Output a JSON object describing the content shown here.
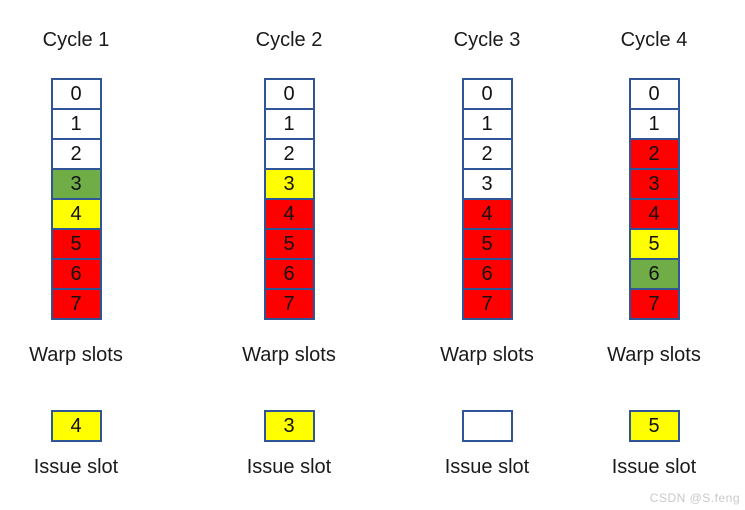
{
  "labels": {
    "warp_slots": "Warp slots",
    "issue_slot": "Issue slot"
  },
  "colors": {
    "white": "#FFFFFF",
    "green": "#70AD47",
    "yellow": "#FFFF00",
    "red": "#FF0000",
    "border": "#2F5597"
  },
  "columns": [
    {
      "title": "Cycle 1",
      "cells": [
        {
          "label": "0",
          "color": "white"
        },
        {
          "label": "1",
          "color": "white"
        },
        {
          "label": "2",
          "color": "white"
        },
        {
          "label": "3",
          "color": "green"
        },
        {
          "label": "4",
          "color": "yellow"
        },
        {
          "label": "5",
          "color": "red"
        },
        {
          "label": "6",
          "color": "red"
        },
        {
          "label": "7",
          "color": "red"
        }
      ],
      "issue": {
        "label": "4",
        "color": "yellow"
      }
    },
    {
      "title": "Cycle 2",
      "cells": [
        {
          "label": "0",
          "color": "white"
        },
        {
          "label": "1",
          "color": "white"
        },
        {
          "label": "2",
          "color": "white"
        },
        {
          "label": "3",
          "color": "yellow"
        },
        {
          "label": "4",
          "color": "red"
        },
        {
          "label": "5",
          "color": "red"
        },
        {
          "label": "6",
          "color": "red"
        },
        {
          "label": "7",
          "color": "red"
        }
      ],
      "issue": {
        "label": "3",
        "color": "yellow"
      }
    },
    {
      "title": "Cycle 3",
      "cells": [
        {
          "label": "0",
          "color": "white"
        },
        {
          "label": "1",
          "color": "white"
        },
        {
          "label": "2",
          "color": "white"
        },
        {
          "label": "3",
          "color": "white"
        },
        {
          "label": "4",
          "color": "red"
        },
        {
          "label": "5",
          "color": "red"
        },
        {
          "label": "6",
          "color": "red"
        },
        {
          "label": "7",
          "color": "red"
        }
      ],
      "issue": {
        "label": "",
        "color": "white"
      }
    },
    {
      "title": "Cycle 4",
      "cells": [
        {
          "label": "0",
          "color": "white"
        },
        {
          "label": "1",
          "color": "white"
        },
        {
          "label": "2",
          "color": "red"
        },
        {
          "label": "3",
          "color": "red"
        },
        {
          "label": "4",
          "color": "red"
        },
        {
          "label": "5",
          "color": "yellow"
        },
        {
          "label": "6",
          "color": "green"
        },
        {
          "label": "7",
          "color": "red"
        }
      ],
      "issue": {
        "label": "5",
        "color": "yellow"
      }
    }
  ],
  "watermark": "CSDN @S.feng"
}
